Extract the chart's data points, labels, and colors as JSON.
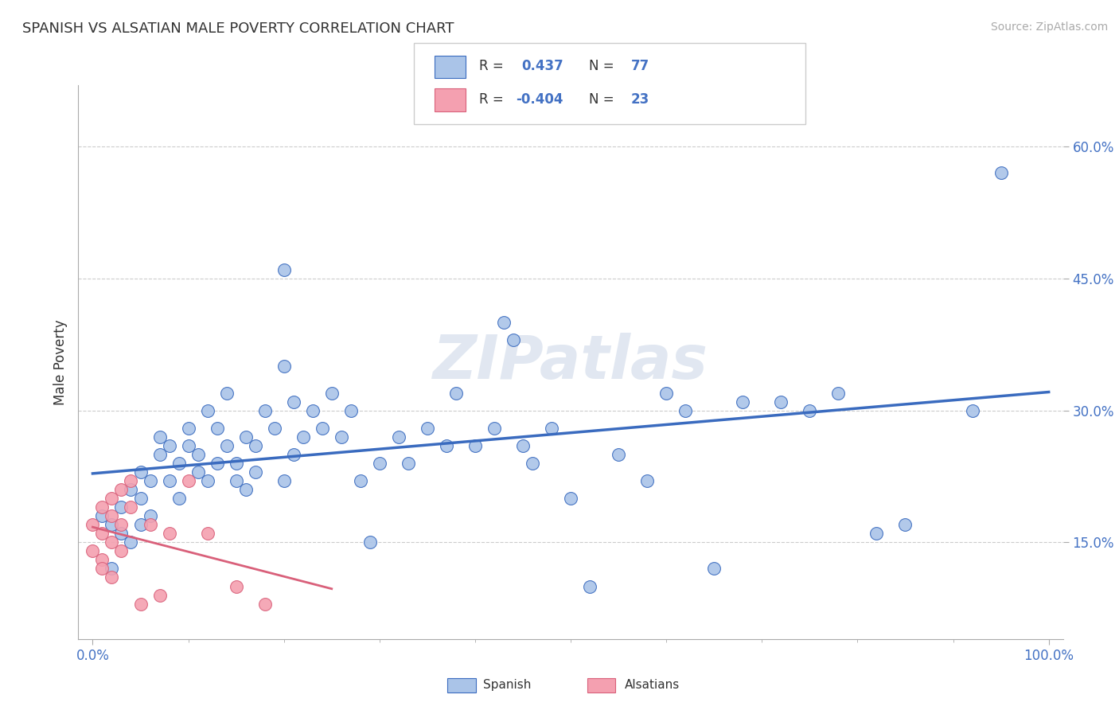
{
  "title": "SPANISH VS ALSATIAN MALE POVERTY CORRELATION CHART",
  "source": "Source: ZipAtlas.com",
  "ylabel": "Male Poverty",
  "y_ticks": [
    0.15,
    0.3,
    0.45,
    0.6
  ],
  "y_tick_labels": [
    "15.0%",
    "30.0%",
    "45.0%",
    "60.0%"
  ],
  "spanish_R": "0.437",
  "spanish_N": "77",
  "alsatian_R": "-0.404",
  "alsatian_N": "23",
  "spanish_color": "#aac4e8",
  "alsatian_color": "#f4a0b0",
  "spanish_line_color": "#3a6bbf",
  "alsatian_line_color": "#d9607a",
  "background_color": "#ffffff",
  "grid_color": "#cccccc",
  "watermark": "ZIPatlas",
  "spanish_points": [
    [
      0.01,
      0.18
    ],
    [
      0.02,
      0.17
    ],
    [
      0.02,
      0.12
    ],
    [
      0.03,
      0.19
    ],
    [
      0.03,
      0.16
    ],
    [
      0.04,
      0.21
    ],
    [
      0.04,
      0.15
    ],
    [
      0.05,
      0.2
    ],
    [
      0.05,
      0.17
    ],
    [
      0.05,
      0.23
    ],
    [
      0.06,
      0.22
    ],
    [
      0.06,
      0.18
    ],
    [
      0.07,
      0.25
    ],
    [
      0.07,
      0.27
    ],
    [
      0.08,
      0.26
    ],
    [
      0.08,
      0.22
    ],
    [
      0.09,
      0.24
    ],
    [
      0.09,
      0.2
    ],
    [
      0.1,
      0.28
    ],
    [
      0.1,
      0.26
    ],
    [
      0.11,
      0.23
    ],
    [
      0.11,
      0.25
    ],
    [
      0.12,
      0.22
    ],
    [
      0.12,
      0.3
    ],
    [
      0.13,
      0.28
    ],
    [
      0.13,
      0.24
    ],
    [
      0.14,
      0.26
    ],
    [
      0.14,
      0.32
    ],
    [
      0.15,
      0.22
    ],
    [
      0.15,
      0.24
    ],
    [
      0.16,
      0.27
    ],
    [
      0.16,
      0.21
    ],
    [
      0.17,
      0.26
    ],
    [
      0.17,
      0.23
    ],
    [
      0.18,
      0.3
    ],
    [
      0.19,
      0.28
    ],
    [
      0.2,
      0.35
    ],
    [
      0.2,
      0.22
    ],
    [
      0.21,
      0.31
    ],
    [
      0.21,
      0.25
    ],
    [
      0.22,
      0.27
    ],
    [
      0.23,
      0.3
    ],
    [
      0.24,
      0.28
    ],
    [
      0.25,
      0.32
    ],
    [
      0.26,
      0.27
    ],
    [
      0.27,
      0.3
    ],
    [
      0.28,
      0.22
    ],
    [
      0.29,
      0.15
    ],
    [
      0.3,
      0.24
    ],
    [
      0.32,
      0.27
    ],
    [
      0.33,
      0.24
    ],
    [
      0.35,
      0.28
    ],
    [
      0.37,
      0.26
    ],
    [
      0.38,
      0.32
    ],
    [
      0.4,
      0.26
    ],
    [
      0.42,
      0.28
    ],
    [
      0.43,
      0.4
    ],
    [
      0.44,
      0.38
    ],
    [
      0.45,
      0.26
    ],
    [
      0.46,
      0.24
    ],
    [
      0.48,
      0.28
    ],
    [
      0.5,
      0.2
    ],
    [
      0.52,
      0.1
    ],
    [
      0.55,
      0.25
    ],
    [
      0.58,
      0.22
    ],
    [
      0.6,
      0.32
    ],
    [
      0.62,
      0.3
    ],
    [
      0.65,
      0.12
    ],
    [
      0.68,
      0.31
    ],
    [
      0.72,
      0.31
    ],
    [
      0.75,
      0.3
    ],
    [
      0.78,
      0.32
    ],
    [
      0.82,
      0.16
    ],
    [
      0.85,
      0.17
    ],
    [
      0.92,
      0.3
    ],
    [
      0.95,
      0.57
    ],
    [
      0.2,
      0.46
    ]
  ],
  "alsatian_points": [
    [
      0.0,
      0.17
    ],
    [
      0.0,
      0.14
    ],
    [
      0.01,
      0.16
    ],
    [
      0.01,
      0.19
    ],
    [
      0.01,
      0.13
    ],
    [
      0.01,
      0.12
    ],
    [
      0.02,
      0.15
    ],
    [
      0.02,
      0.18
    ],
    [
      0.02,
      0.2
    ],
    [
      0.02,
      0.11
    ],
    [
      0.03,
      0.21
    ],
    [
      0.03,
      0.17
    ],
    [
      0.03,
      0.14
    ],
    [
      0.04,
      0.19
    ],
    [
      0.04,
      0.22
    ],
    [
      0.05,
      0.08
    ],
    [
      0.06,
      0.17
    ],
    [
      0.07,
      0.09
    ],
    [
      0.08,
      0.16
    ],
    [
      0.1,
      0.22
    ],
    [
      0.12,
      0.16
    ],
    [
      0.15,
      0.1
    ],
    [
      0.18,
      0.08
    ]
  ]
}
